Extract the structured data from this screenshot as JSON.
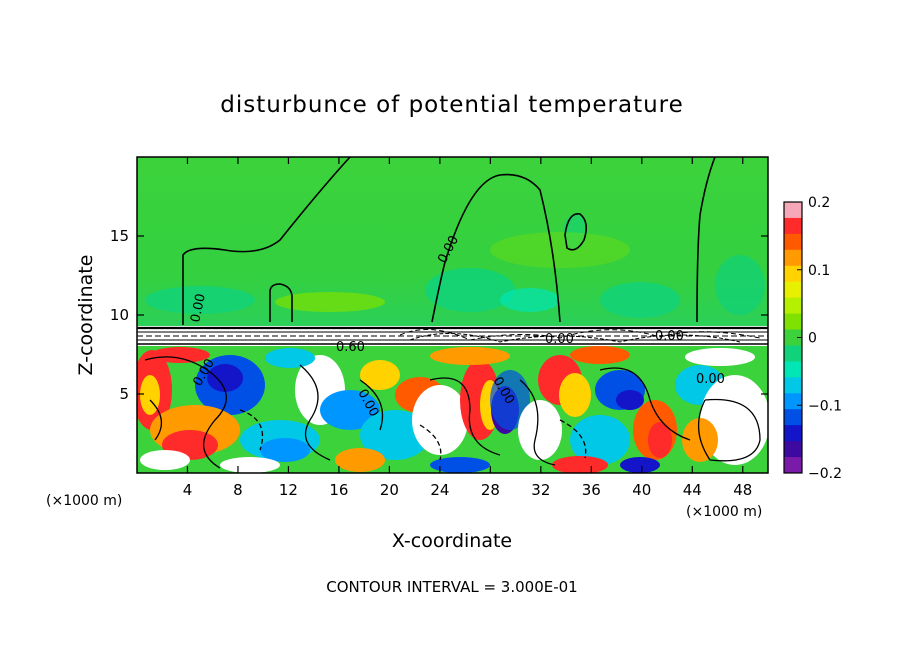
{
  "chart_data": {
    "type": "heatmap",
    "title": "disturbunce of potential temperature",
    "xlabel": "X-coordinate",
    "ylabel": "Z-coordinate",
    "x_unit_label": "(×1000 m)",
    "x_unit_label_right": "(×1000 m)",
    "xlim": [
      0,
      50
    ],
    "ylim": [
      0,
      20
    ],
    "x_ticks": [
      4,
      8,
      12,
      16,
      20,
      24,
      28,
      32,
      36,
      40,
      44,
      48
    ],
    "y_ticks": [
      5,
      10,
      15
    ],
    "colorbar": {
      "min": -0.2,
      "max": 0.2,
      "ticks": [
        0.2,
        0.1,
        0,
        -0.1,
        -0.2
      ],
      "tick_labels": [
        "0.2",
        "0.1",
        "0",
        "−0.1",
        "−0.2"
      ],
      "colors": [
        "#f7a8b8",
        "#ff2a2a",
        "#ff5a00",
        "#ff9a00",
        "#ffd200",
        "#e6f000",
        "#b4f000",
        "#7ee100",
        "#3cd23c",
        "#10d27a",
        "#00e6b4",
        "#00c8e6",
        "#0096ff",
        "#0050e6",
        "#1414c8",
        "#3c0aa0",
        "#7a1aa8"
      ]
    },
    "contour_labels": [
      "0.00",
      "0.00",
      "0.00",
      "0.00",
      "0.60",
      "0.00",
      "0.00",
      "0.00",
      "0.00"
    ],
    "footer": "CONTOUR INTERVAL = 3.000E-01"
  }
}
